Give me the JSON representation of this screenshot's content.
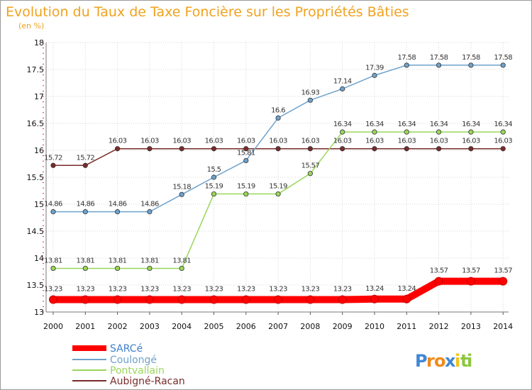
{
  "chart_data": {
    "type": "line",
    "title": "Evolution du Taux de Taxe Foncière sur les Propriétés Bâties",
    "subtitle": "(en %)",
    "xlabel": "",
    "ylabel": "",
    "ylim": [
      13,
      18
    ],
    "y_ticks": [
      "13",
      "13.5",
      "14",
      "14.5",
      "15",
      "15.5",
      "16",
      "16.5",
      "17",
      "17.5",
      "18"
    ],
    "x": [
      "2000",
      "2001",
      "2002",
      "2003",
      "2004",
      "2005",
      "2006",
      "2007",
      "2008",
      "2009",
      "2010",
      "2011",
      "2012",
      "2013",
      "2014"
    ],
    "grid": true,
    "legend_position": "bottom-left",
    "series": [
      {
        "name": "SARCé",
        "color": "#ff0000",
        "emphasis": true,
        "values": [
          13.23,
          13.23,
          13.23,
          13.23,
          13.23,
          13.23,
          13.23,
          13.23,
          13.23,
          13.23,
          13.24,
          13.24,
          13.57,
          13.57,
          13.57
        ],
        "labels": [
          "13.23",
          "13.23",
          "13.23",
          "13.23",
          "13.23",
          "13.23",
          "13.23",
          "13.23",
          "13.23",
          "13.23",
          "13.24",
          "13.24",
          "13.57",
          "13.57",
          "13.57"
        ]
      },
      {
        "name": "Coulongé",
        "color": "#6ea2cc",
        "values": [
          14.86,
          14.86,
          14.86,
          14.86,
          15.18,
          15.5,
          15.81,
          16.6,
          16.93,
          17.14,
          17.39,
          17.58,
          17.58,
          17.58,
          17.58
        ],
        "labels": [
          "14.86",
          "14.86",
          "14.86",
          "14.86",
          "15.18",
          "15.5",
          "15.81",
          "16.6",
          "16.93",
          "17.14",
          "17.39",
          "17.58",
          "17.58",
          "17.58",
          "17.58"
        ]
      },
      {
        "name": "Pontvallain",
        "color": "#9ad65c",
        "values": [
          13.81,
          13.81,
          13.81,
          13.81,
          13.81,
          15.19,
          15.19,
          15.19,
          15.57,
          16.34,
          16.34,
          16.34,
          16.34,
          16.34,
          16.34
        ],
        "labels": [
          "13.81",
          "13.81",
          "13.81",
          "13.81",
          "13.81",
          "15.19",
          "15.19",
          "15.19",
          "15.57",
          "16.34",
          "16.34",
          "16.34",
          "16.34",
          "16.34",
          "16.34"
        ]
      },
      {
        "name": "Aubigné-Racan",
        "color": "#7a2a2a",
        "values": [
          15.72,
          15.72,
          16.03,
          16.03,
          16.03,
          16.03,
          16.03,
          16.03,
          16.03,
          16.03,
          16.03,
          16.03,
          16.03,
          16.03,
          16.03
        ],
        "labels": [
          "15.72",
          "15.72",
          "16.03",
          "16.03",
          "16.03",
          "16.03",
          "16.03",
          "16.03",
          "16.03",
          "16.03",
          "16.03",
          "16.03",
          "16.03",
          "16.03",
          "16.03"
        ]
      }
    ]
  },
  "logo": {
    "letters": [
      {
        "ch": "P",
        "color": "#3f87d6"
      },
      {
        "ch": "r",
        "color": "#f08a1c"
      },
      {
        "ch": "o",
        "color": "#f08a1c"
      },
      {
        "ch": "x",
        "color": "#3f87d6"
      },
      {
        "ch": "i",
        "color": "#f0c419"
      },
      {
        "ch": "t",
        "color": "#8cc63f"
      },
      {
        "ch": "i",
        "color": "#8cc63f"
      }
    ]
  }
}
